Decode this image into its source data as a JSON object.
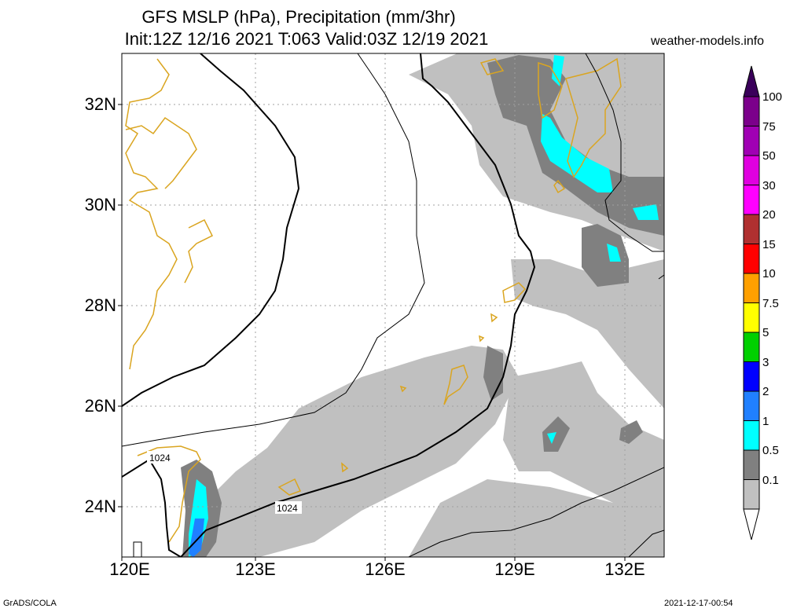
{
  "title": {
    "line1": "GFS MSLP (hPa), Precipitation (mm/3hr)",
    "line2": "Init:12Z 12/16 2021 T:063 Valid:03Z 12/19 2021"
  },
  "source": "weather-models.info",
  "footer": {
    "left": "GrADS/COLA",
    "right": "2021-12-17-00:54"
  },
  "map": {
    "lat_labels": [
      "32N",
      "30N",
      "28N",
      "26N",
      "24N"
    ],
    "lon_labels": [
      "120E",
      "123E",
      "126E",
      "129E",
      "132E"
    ],
    "isobar_labels": [
      "1024",
      "1024"
    ],
    "colors": {
      "coast": "#daa520",
      "grid": "#a0a0a0"
    }
  },
  "colorbar": {
    "levels": [
      "100",
      "75",
      "50",
      "30",
      "20",
      "15",
      "10",
      "7.5",
      "5",
      "3",
      "2",
      "1",
      "0.5",
      "0.1"
    ],
    "colors": [
      "#7b008b",
      "#a000b4",
      "#e000e0",
      "#ff00ff",
      "#b03030",
      "#ff0000",
      "#ffa000",
      "#ffff00",
      "#00d000",
      "#0000ff",
      "#2080ff",
      "#00ffff",
      "#808080",
      "#c0c0c0"
    ]
  }
}
